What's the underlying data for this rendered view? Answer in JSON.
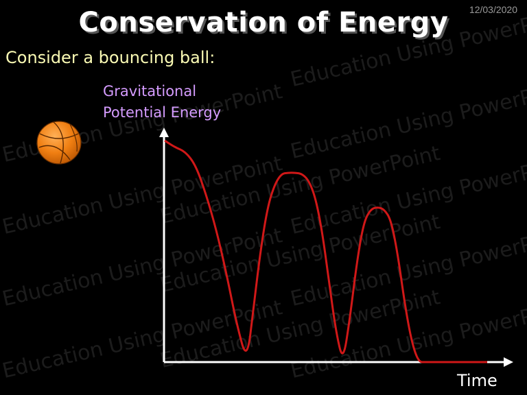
{
  "slide": {
    "date": "12/03/2020",
    "title": "Conservation of Energy",
    "subtitle": "Consider a bouncing ball:",
    "watermark": "Education Using PowerPoint"
  },
  "colors": {
    "background": "#000000",
    "curve": "#d01818",
    "axes": "#ffffff",
    "ylabel": "#d59cff",
    "subtitle": "#fafab4",
    "ball": "#f07f12"
  },
  "icons": {
    "ball": "basketball-icon"
  },
  "chart_data": {
    "type": "line",
    "xlabel": "Time",
    "ylabel_lines": [
      "Gravitational",
      "Potential Energy"
    ],
    "xlim": [
      0,
      10
    ],
    "ylim": [
      0,
      10
    ],
    "grid": false,
    "series": [
      {
        "x": [
          0,
          0.3,
          0.6,
          0.9,
          1.2,
          1.5,
          1.8,
          2.1,
          2.4,
          2.6,
          2.8,
          3.0,
          3.2,
          3.4,
          3.6,
          3.8,
          4.0,
          4.2,
          4.4,
          4.6,
          4.8,
          5.0,
          5.2,
          5.4,
          5.6,
          5.8,
          6.0,
          6.2,
          6.4,
          6.6,
          6.8,
          7.0,
          7.2,
          7.4,
          7.6,
          7.8,
          8.0,
          8.2,
          8.4,
          8.6,
          8.8,
          9.0,
          9.2,
          9.4
        ],
        "y": [
          10,
          9.7,
          9.5,
          8.9,
          7.6,
          6.0,
          4.0,
          1.7,
          0,
          2.6,
          5.1,
          7.0,
          8.0,
          8.5,
          8.55,
          8.55,
          8.5,
          8.2,
          7.4,
          5.8,
          3.5,
          1.3,
          0,
          2.0,
          4.5,
          6.3,
          6.9,
          7.0,
          6.9,
          6.4,
          4.8,
          2.6,
          0.9,
          0,
          0,
          0,
          0,
          0,
          0,
          0,
          0,
          0,
          0,
          0
        ]
      }
    ]
  }
}
